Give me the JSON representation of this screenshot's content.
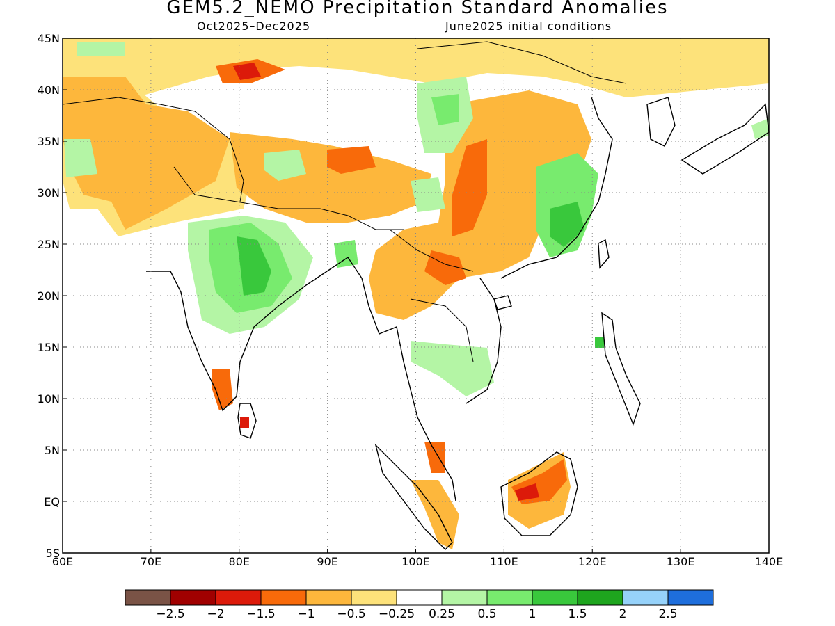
{
  "header": {
    "title": "GEM5.2_NEMO Precipitation Standard Anomalies",
    "period": "Oct2025–Dec2025",
    "init": "June2025 initial conditions"
  },
  "axes": {
    "lon_range": [
      60,
      140
    ],
    "lat_range": [
      -5,
      45
    ],
    "lon_ticks": [
      "60E",
      "70E",
      "80E",
      "90E",
      "100E",
      "110E",
      "120E",
      "130E",
      "140E"
    ],
    "lat_ticks": [
      "45N",
      "40N",
      "35N",
      "30N",
      "25N",
      "20N",
      "15N",
      "10N",
      "5N",
      "EQ",
      "5S"
    ],
    "grid": "dotted"
  },
  "colorbar": {
    "colors": [
      "#7a5346",
      "#a00000",
      "#dc1a0a",
      "#f86a0a",
      "#fdb73c",
      "#fde27a",
      "#ffffff",
      "#b4f5a5",
      "#78eb6e",
      "#39c83c",
      "#1ea51e",
      "#96d2fa",
      "#1e6edc"
    ],
    "labels": [
      "−2.5",
      "−2",
      "−1.5",
      "−1",
      "−0.5",
      "−0.25",
      "0.25",
      "0.5",
      "1",
      "1.5",
      "2",
      "2.5"
    ]
  },
  "regions": [
    {
      "name": "north-india-pakistan-dry",
      "color": "#fde27a"
    },
    {
      "name": "central-india-wet",
      "color": "#b4f5a5"
    },
    {
      "name": "south-china-dry",
      "color": "#fdb73c"
    },
    {
      "name": "southeast-china-wet",
      "color": "#78eb6e"
    },
    {
      "name": "borneo-dry",
      "color": "#f86a0a"
    }
  ]
}
